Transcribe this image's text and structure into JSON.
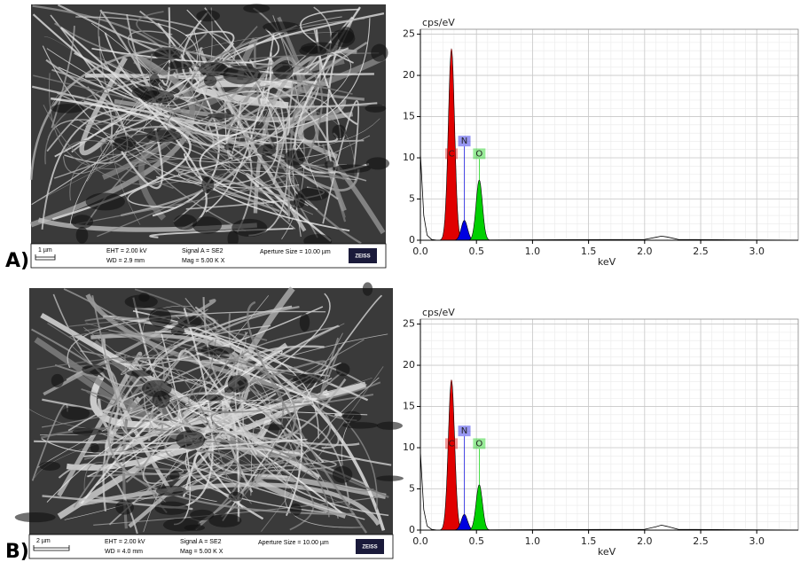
{
  "sem_images": [
    {
      "panel_label": "A)",
      "scale_bar": "1 µm",
      "eht": "EHT = 2.00 kV",
      "wd": "WD = 2.9 mm",
      "signal": "Signal A = SE2",
      "mag": "Mag =   5.00 K X",
      "aperture": "Aperture Size = 10.00 µm",
      "logo": "ZEISS"
    },
    {
      "panel_label": "B)",
      "scale_bar": "2 µm",
      "eht": "EHT = 2.00 kV",
      "wd": "WD = 4.0 mm",
      "signal": "Signal A = SE2",
      "mag": "Mag =   5.00 K X",
      "aperture": "Aperture Size = 10.00 µm",
      "logo": "ZEISS"
    }
  ],
  "chart_data": [
    {
      "type": "spectrum",
      "y_label": "cps/eV",
      "x_label": "keV",
      "grid": true,
      "xlim": [
        0,
        3.37
      ],
      "xticks": [
        {
          "value": 0,
          "label": "0.0"
        },
        {
          "value": 0.5,
          "label": "0.5"
        },
        {
          "value": 1,
          "label": "1.0"
        },
        {
          "value": 1.5,
          "label": "1.5"
        },
        {
          "value": 2,
          "label": "2.0"
        },
        {
          "value": 2.5,
          "label": "2.5"
        },
        {
          "value": 3,
          "label": "3.0"
        }
      ],
      "ylim": [
        0,
        25.6
      ],
      "yticks": [
        0,
        5,
        10,
        15,
        20,
        25
      ],
      "series": [
        {
          "name": "C",
          "color": "#e00000",
          "x": [
            0.277
          ],
          "values": [
            23.2
          ]
        },
        {
          "name": "N",
          "color": "#0000e0",
          "x": [
            0.392
          ],
          "values": [
            2.4
          ]
        },
        {
          "name": "O",
          "color": "#00d000",
          "x": [
            0.525
          ],
          "values": [
            7.3
          ]
        }
      ],
      "background": {
        "x": [
          0,
          0.01,
          0.03,
          0.06,
          0.1,
          0.15,
          1.0,
          2.0,
          2.1,
          2.15,
          2.2,
          2.3,
          3.37
        ],
        "values": [
          10.5,
          8,
          3,
          0.6,
          0.1,
          0,
          0.05,
          0.1,
          0.35,
          0.5,
          0.4,
          0.1,
          0
        ]
      }
    },
    {
      "type": "spectrum",
      "y_label": "cps/eV",
      "x_label": "keV",
      "grid": true,
      "xlim": [
        0,
        3.37
      ],
      "xticks": [
        {
          "value": 0,
          "label": "0.0"
        },
        {
          "value": 0.5,
          "label": "0.5"
        },
        {
          "value": 1,
          "label": "1.0"
        },
        {
          "value": 1.5,
          "label": "1.5"
        },
        {
          "value": 2,
          "label": "2.0"
        },
        {
          "value": 2.5,
          "label": "2.5"
        },
        {
          "value": 3,
          "label": "3.0"
        }
      ],
      "ylim": [
        0,
        25.6
      ],
      "yticks": [
        0,
        5,
        10,
        15,
        20,
        25
      ],
      "series": [
        {
          "name": "C",
          "color": "#e00000",
          "x": [
            0.277
          ],
          "values": [
            18.2
          ]
        },
        {
          "name": "N",
          "color": "#0000e0",
          "x": [
            0.392
          ],
          "values": [
            1.9
          ]
        },
        {
          "name": "O",
          "color": "#00d000",
          "x": [
            0.525
          ],
          "values": [
            5.5
          ]
        }
      ],
      "background": {
        "x": [
          0,
          0.01,
          0.03,
          0.06,
          0.1,
          0.15,
          1.0,
          2.0,
          2.1,
          2.15,
          2.2,
          2.3,
          3.37
        ],
        "values": [
          9.5,
          7,
          2.5,
          0.5,
          0.1,
          0,
          0.05,
          0.1,
          0.4,
          0.6,
          0.45,
          0.1,
          0
        ]
      }
    }
  ]
}
